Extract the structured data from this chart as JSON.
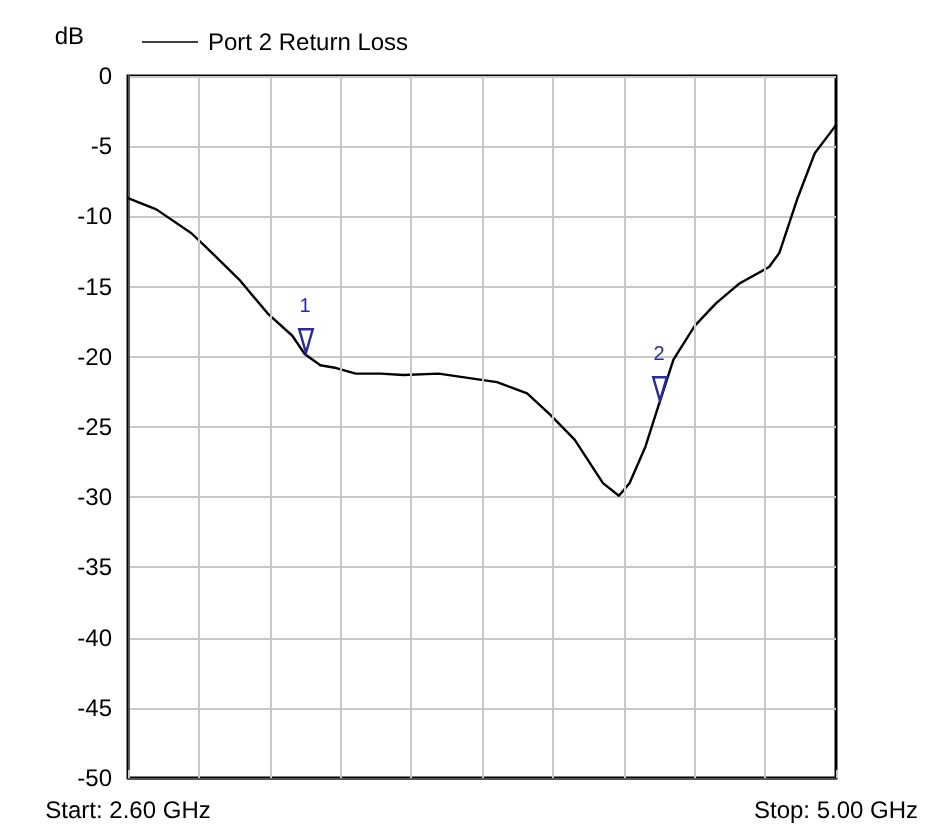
{
  "chart_data": {
    "type": "line",
    "ylabel": "dB",
    "x": [
      2.6,
      2.696,
      2.815,
      2.875,
      2.977,
      3.073,
      3.157,
      3.199,
      3.252,
      3.306,
      3.372,
      3.456,
      3.534,
      3.653,
      3.851,
      3.953,
      4.03,
      4.114,
      4.21,
      4.264,
      4.3,
      4.354,
      4.401,
      4.449,
      4.521,
      4.593,
      4.671,
      4.773,
      4.808,
      4.868,
      4.928,
      5.0
    ],
    "series": [
      {
        "name": "Port 2 Return Loss",
        "color": "#000000",
        "values": [
          -8.7,
          -9.5,
          -11.2,
          -12.4,
          -14.5,
          -16.9,
          -18.5,
          -19.8,
          -20.6,
          -20.8,
          -21.2,
          -21.2,
          -21.3,
          -21.2,
          -21.8,
          -22.6,
          -24.1,
          -25.9,
          -29.0,
          -29.9,
          -29.0,
          -26.4,
          -23.3,
          -20.2,
          -17.8,
          -16.2,
          -14.8,
          -13.6,
          -12.6,
          -8.8,
          -5.5,
          -3.5
        ]
      }
    ],
    "annotations": [
      {
        "text": "1",
        "x": 3.2,
        "y": -19.8
      },
      {
        "text": "2",
        "x": 4.4,
        "y": -23.2
      }
    ],
    "xlim": [
      2.6,
      5.0
    ],
    "xticks": [
      {
        "value": 2.6,
        "label": "Start: 2.60 GHz"
      },
      {
        "value": 2.84,
        "label": null
      },
      {
        "value": 3.08,
        "label": null
      },
      {
        "value": 3.32,
        "label": null
      },
      {
        "value": 3.56,
        "label": null
      },
      {
        "value": 3.8,
        "label": null
      },
      {
        "value": 4.04,
        "label": null
      },
      {
        "value": 4.28,
        "label": null
      },
      {
        "value": 4.52,
        "label": null
      },
      {
        "value": 4.76,
        "label": null
      },
      {
        "value": 5.0,
        "label": "Stop: 5.00 GHz"
      }
    ],
    "ylim": [
      -50,
      0
    ],
    "yticks": [
      -50,
      -45,
      -40,
      -35,
      -30,
      -25,
      -20,
      -15,
      -10,
      -5,
      0
    ],
    "grid": true,
    "legend": "top left",
    "marker": "none",
    "line_style": "solid"
  }
}
